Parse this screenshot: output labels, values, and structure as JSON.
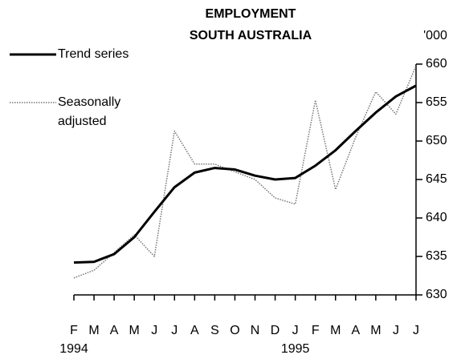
{
  "chart_data": {
    "type": "line",
    "title": "EMPLOYMENT",
    "subtitle": "SOUTH AUSTRALIA",
    "y_axis_label": "'000",
    "categories": [
      "F",
      "M",
      "A",
      "M",
      "J",
      "J",
      "A",
      "S",
      "O",
      "N",
      "D",
      "J",
      "F",
      "M",
      "A",
      "M",
      "J",
      "J"
    ],
    "year_labels": [
      "1994",
      null,
      null,
      null,
      null,
      null,
      null,
      null,
      null,
      null,
      null,
      "1995",
      null,
      null,
      null,
      null,
      null,
      null
    ],
    "series": [
      {
        "name": "Trend series",
        "color": "#000000",
        "style": "solid",
        "values": [
          634.2,
          634.3,
          635.3,
          637.5,
          640.8,
          644,
          645.9,
          646.5,
          646.3,
          645.5,
          645,
          645.2,
          646.8,
          648.8,
          651.3,
          653.7,
          655.8,
          657.2
        ]
      },
      {
        "name": "Seasonally adjusted",
        "color": "#777777",
        "style": "dotted",
        "values": [
          632.2,
          633.2,
          635.5,
          637.8,
          635,
          651.3,
          647,
          647,
          646,
          645,
          642.6,
          641.8,
          655.3,
          643.7,
          650.5,
          656.4,
          653.5,
          659.8
        ]
      }
    ],
    "ylim": [
      630,
      660
    ],
    "yticks": [
      630,
      635,
      640,
      645,
      650,
      655,
      660
    ],
    "y_axis_side": "right",
    "grid": false
  }
}
